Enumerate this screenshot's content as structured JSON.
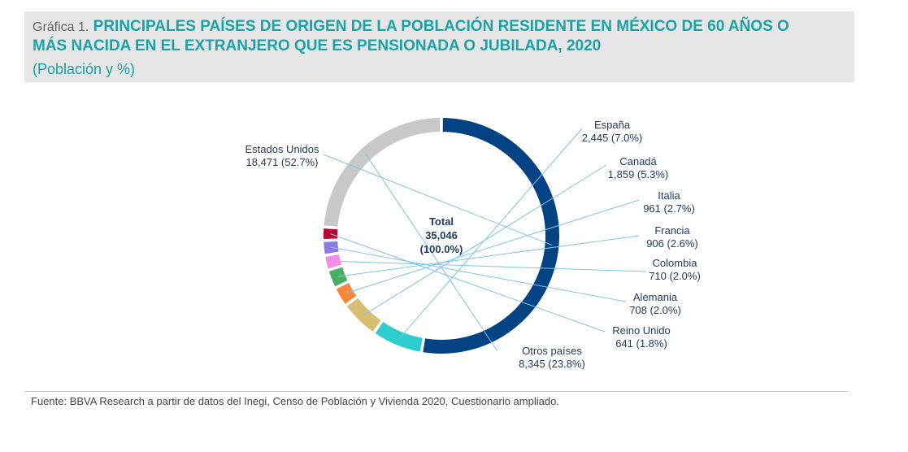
{
  "header": {
    "prefix": "Gráfica 1.",
    "title_line1": "PRINCIPALES PAÍSES DE ORIGEN DE LA POBLACIÓN RESIDENTE EN MÉXICO DE 60 AÑOS O",
    "title_line2": "MÁS NACIDA EN EL EXTRANJERO QUE ES PENSIONADA O JUBILADA, 2020",
    "subtitle": "(Población y %)"
  },
  "chart_data": {
    "type": "pie",
    "variant": "donut",
    "title": "PRINCIPALES PAÍSES DE ORIGEN DE LA POBLACIÓN RESIDENTE EN MÉXICO DE 60 AÑOS O MÁS NACIDA EN EL EXTRANJERO QUE ES PENSIONADA O JUBILADA, 2020",
    "units": "Población y %",
    "center": {
      "title": "Total",
      "value": "35,046",
      "percent": "(100.0%)"
    },
    "slices": [
      {
        "name": "Estados Unidos",
        "value": 18471,
        "percent": 52.7,
        "value_label": "18,471 (52.7%)",
        "color": "#034283"
      },
      {
        "name": "España",
        "value": 2445,
        "percent": 7.0,
        "value_label": "2,445 (7.0%)",
        "color": "#2dcccd"
      },
      {
        "name": "Canadá",
        "value": 1859,
        "percent": 5.3,
        "value_label": "1,859 (5.3%)",
        "color": "#d8be75"
      },
      {
        "name": "Italia",
        "value": 961,
        "percent": 2.7,
        "value_label": "961 (2.7%)",
        "color": "#f7893b"
      },
      {
        "name": "Francia",
        "value": 906,
        "percent": 2.6,
        "value_label": "906 (2.6%)",
        "color": "#48ae64"
      },
      {
        "name": "Colombia",
        "value": 710,
        "percent": 2.0,
        "value_label": "710 (2.0%)",
        "color": "#f78be8"
      },
      {
        "name": "Alemania",
        "value": 708,
        "percent": 2.0,
        "value_label": "708 (2.0%)",
        "color": "#8f7ae5"
      },
      {
        "name": "Reino Unido",
        "value": 641,
        "percent": 1.8,
        "value_label": "641 (1.8%)",
        "color": "#b5042e"
      },
      {
        "name": "Otros países",
        "value": 8345,
        "percent": 23.8,
        "value_label": "8,345 (23.8%)",
        "color": "#c8c8c8"
      }
    ]
  },
  "footer": {
    "source": "Fuente: BBVA Research a partir de datos del Inegi, Censo de Población y Vivienda 2020, Cuestionario ampliado."
  }
}
